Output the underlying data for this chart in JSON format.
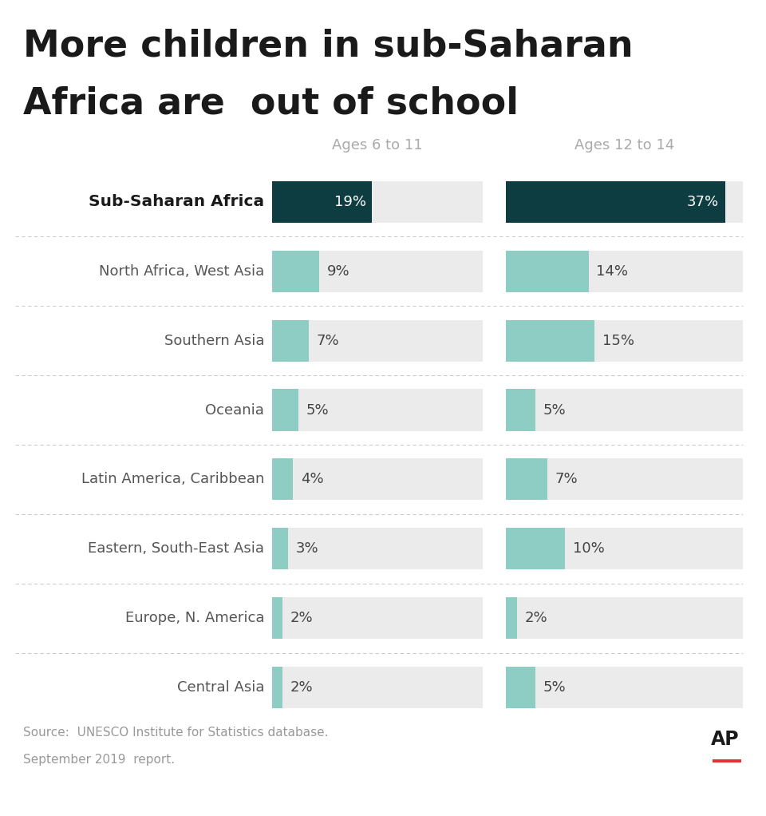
{
  "title_line1": "More children in sub-Saharan",
  "title_line2": "Africa are  out of school",
  "col1_header": "Ages 6 to 11",
  "col2_header": "Ages 12 to 14",
  "source_line1": "Source:  UNESCO Institute for Statistics database.",
  "source_line2": "September 2019  report.",
  "ap_logo": "AP",
  "regions": [
    "Sub-Saharan Africa",
    "North Africa, West Asia",
    "Southern Asia",
    "Oceania",
    "Latin America, Caribbean",
    "Eastern, South-East Asia",
    "Europe, N. America",
    "Central Asia"
  ],
  "values_6_11": [
    19,
    9,
    7,
    5,
    4,
    3,
    2,
    2
  ],
  "values_12_14": [
    37,
    14,
    15,
    5,
    7,
    10,
    2,
    5
  ],
  "max_val": 40,
  "bar_color_highlight": "#0d3d40",
  "bar_color_normal": "#8ecdc4",
  "bar_bg_color": "#ebebeb",
  "background_color": "#ffffff",
  "title_color": "#1a1a1a",
  "label_color_highlight": "#ffffff",
  "label_color_normal": "#444444",
  "header_color": "#aaaaaa",
  "source_color": "#999999",
  "region_color_highlight": "#1a1a1a",
  "region_color_normal": "#555555",
  "separator_color": "#cccccc"
}
